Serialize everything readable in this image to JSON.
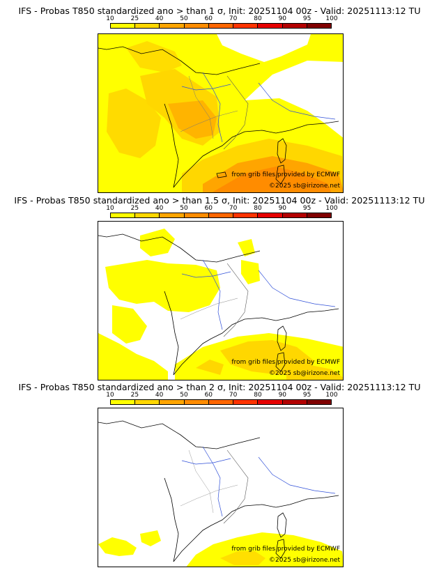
{
  "legend": {
    "values": [
      "10",
      "25",
      "40",
      "50",
      "60",
      "70",
      "80",
      "90",
      "95",
      "100"
    ],
    "colors": [
      "#ffff00",
      "#ffd700",
      "#ffa500",
      "#ff8c00",
      "#ff6600",
      "#ff3300",
      "#e60000",
      "#b30000",
      "#800000"
    ]
  },
  "panels": [
    {
      "title": "IFS - Probas T850  standardized ano > than 1 σ, Init: 20251104 00z - Valid: 20251113:12 TU",
      "credit_source": "from grib files provided by ECMWF",
      "credit_copyright": "©2025 sb@irizone.net"
    },
    {
      "title": "IFS - Probas T850  standardized ano > than 1.5 σ, Init: 20251104 00z - Valid: 20251113:12 TU",
      "credit_source": "from grib files provided by ECMWF",
      "credit_copyright": "©2025 sb@irizone.net"
    },
    {
      "title": "IFS - Probas T850  standardized ano > than 2 σ, Init: 20251104 00z - Valid: 20251113:12 TU",
      "credit_source": "from grib files provided by ECMWF",
      "credit_copyright": "©2025 sb@irizone.net"
    }
  ]
}
